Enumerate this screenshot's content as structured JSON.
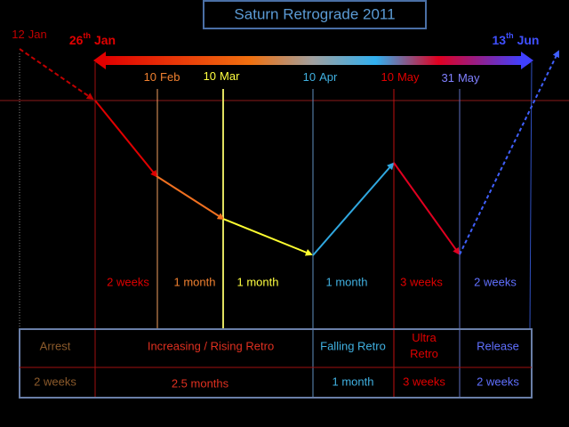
{
  "title": "Saturn Retrograde 2011",
  "dates": [
    {
      "day": "12",
      "suffix": "",
      "month": "Jan"
    },
    {
      "day": "26",
      "suffix": "th",
      "month": "Jan"
    },
    {
      "day": "10",
      "suffix": "",
      "month": "Feb"
    },
    {
      "day": "10",
      "suffix": "",
      "month": "Mar"
    },
    {
      "day": "10",
      "suffix": "",
      "month": "Apr"
    },
    {
      "day": "10",
      "suffix": "",
      "month": "May"
    },
    {
      "day": "31",
      "suffix": "",
      "month": "May"
    },
    {
      "day": "13",
      "suffix": "th",
      "month": "Jun"
    }
  ],
  "durations": [
    "2 weeks",
    "1 month",
    "1 month",
    "1 month",
    "3 weeks",
    "2 weeks"
  ],
  "table": {
    "rows": [
      [
        "Arrest",
        "Increasing / Rising Retro",
        "Falling Retro",
        "Ultra Retro",
        "Release"
      ],
      [
        "2 weeks",
        "2.5 months",
        "1 month",
        "3 weeks",
        "2 weeks"
      ]
    ]
  }
}
